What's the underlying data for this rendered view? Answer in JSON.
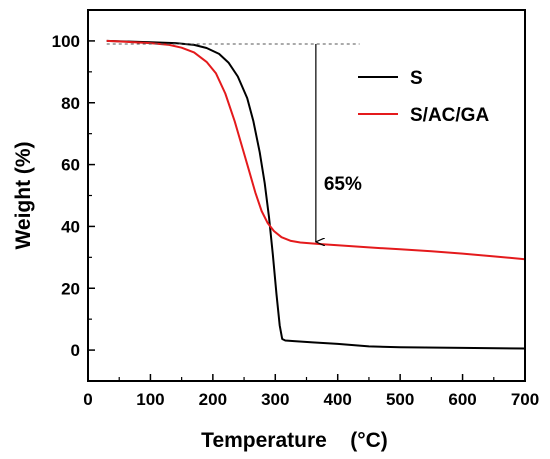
{
  "chart_data": {
    "type": "line",
    "xlabel": "Temperature",
    "xlabel_unit": "(°C)",
    "ylabel": "Weight (%)",
    "xlim": [
      0,
      700
    ],
    "ylim": [
      -10,
      110
    ],
    "xticks": [
      0,
      100,
      200,
      300,
      400,
      500,
      600,
      700
    ],
    "yticks": [
      0,
      20,
      40,
      60,
      80,
      100
    ],
    "grid": false,
    "legend_position": "top-right",
    "series": [
      {
        "name": "S",
        "color": "#000000",
        "points": [
          [
            30,
            100
          ],
          [
            60,
            99.8
          ],
          [
            100,
            99.6
          ],
          [
            140,
            99.3
          ],
          [
            170,
            98.7
          ],
          [
            190,
            97.7
          ],
          [
            210,
            95.8
          ],
          [
            225,
            93
          ],
          [
            240,
            88.5
          ],
          [
            255,
            81.5
          ],
          [
            265,
            74
          ],
          [
            275,
            64
          ],
          [
            283,
            54
          ],
          [
            290,
            43
          ],
          [
            296,
            31
          ],
          [
            302,
            18
          ],
          [
            307,
            8
          ],
          [
            311,
            3.6
          ],
          [
            316,
            3.1
          ],
          [
            330,
            2.9
          ],
          [
            360,
            2.5
          ],
          [
            400,
            2
          ],
          [
            450,
            1.2
          ],
          [
            500,
            0.9
          ],
          [
            600,
            0.7
          ],
          [
            700,
            0.5
          ]
        ]
      },
      {
        "name": "S/AC/GA",
        "color": "#e41a1c",
        "points": [
          [
            30,
            100
          ],
          [
            60,
            99.7
          ],
          [
            100,
            99.3
          ],
          [
            130,
            98.7
          ],
          [
            150,
            97.8
          ],
          [
            170,
            96.3
          ],
          [
            190,
            93.2
          ],
          [
            205,
            89.5
          ],
          [
            220,
            83
          ],
          [
            235,
            74
          ],
          [
            248,
            65
          ],
          [
            258,
            58
          ],
          [
            268,
            51
          ],
          [
            278,
            45
          ],
          [
            288,
            41
          ],
          [
            298,
            38.5
          ],
          [
            310,
            36.5
          ],
          [
            325,
            35.3
          ],
          [
            340,
            34.8
          ],
          [
            370,
            34.3
          ],
          [
            400,
            33.9
          ],
          [
            450,
            33.2
          ],
          [
            500,
            32.6
          ],
          [
            550,
            32
          ],
          [
            600,
            31.2
          ],
          [
            650,
            30.3
          ],
          [
            700,
            29.4
          ]
        ]
      }
    ],
    "annotations": [
      {
        "text": "65%",
        "reference_line": {
          "y": 99,
          "x_from": 30,
          "x_to": 435,
          "style": "dashed"
        },
        "arrow": {
          "x": 365,
          "y_from": 99,
          "y_to": 35
        }
      }
    ]
  }
}
